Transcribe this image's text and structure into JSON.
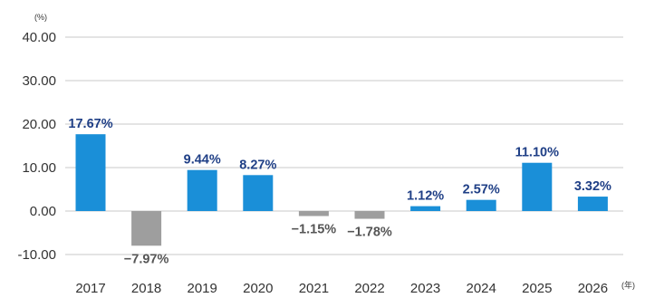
{
  "chart_data": {
    "type": "bar",
    "ylabel": "(%)",
    "xunit": "(年)",
    "categories": [
      "2017",
      "2018",
      "2019",
      "2020",
      "2021",
      "2022",
      "2023",
      "2024",
      "2025",
      "2026"
    ],
    "values": [
      17.67,
      -7.97,
      9.44,
      8.27,
      -1.15,
      -1.78,
      1.12,
      2.57,
      11.1,
      3.32
    ],
    "value_labels": [
      "17.67%",
      "−7.97%",
      "9.44%",
      "8.27%",
      "−1.15%",
      "−1.78%",
      "1.12%",
      "2.57%",
      "11.10%",
      "3.32%"
    ],
    "yticks": [
      "40.00",
      "30.00",
      "20.00",
      "10.00",
      "0.00",
      "-10.00"
    ],
    "ytick_values": [
      40,
      30,
      20,
      10,
      0,
      -10
    ],
    "ylim": [
      -10,
      40
    ],
    "grid": true,
    "colors": {
      "positive": "#1a8fd8",
      "negative": "#9e9e9e",
      "positive_label": "#1f3f86",
      "negative_label": "#555555",
      "grid": "#c8c8c8"
    }
  }
}
